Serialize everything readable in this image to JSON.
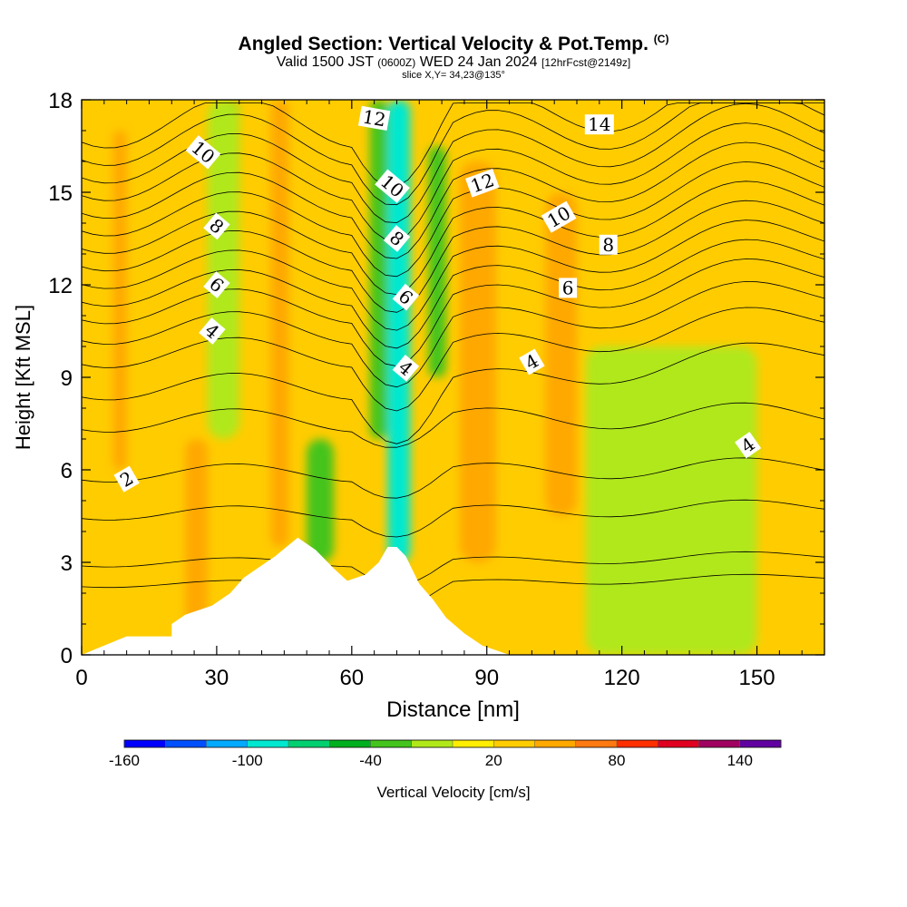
{
  "header": {
    "title": "Angled Section: Vertical Velocity & Pot.Temp.",
    "title_unit": "(C)",
    "subtitle_main": "Valid 1500 JST",
    "subtitle_utc": "(0600Z)",
    "subtitle_date": "WED 24 Jan 2024",
    "subtitle_fcst": "[12hrFcst@2149z]",
    "slice": "slice X,Y= 34,23@135°"
  },
  "chart_data": {
    "type": "heatmap",
    "title": "Angled Section: Vertical Velocity & Pot.Temp. (C)",
    "xlabel": "Distance [nm]",
    "ylabel": "Height [Kft MSL]",
    "xlim": [
      0,
      165
    ],
    "ylim": [
      0,
      18
    ],
    "xticks": [
      "0",
      "30",
      "60",
      "90",
      "120",
      "150"
    ],
    "yticks": [
      "0",
      "3",
      "6",
      "9",
      "12",
      "15",
      "18"
    ],
    "grid": false,
    "colorbar": {
      "label": "Vertical Velocity [cm/s]",
      "min": -160,
      "max": 160,
      "step": 20,
      "ticks": [
        "-160",
        "-100",
        "-40",
        "20",
        "80",
        "140"
      ],
      "colors": [
        "#0000ff",
        "#0050ff",
        "#00aaff",
        "#00e8d0",
        "#00d070",
        "#00b020",
        "#44c41c",
        "#b0e81a",
        "#ffee00",
        "#ffcc00",
        "#ffa800",
        "#ff7a10",
        "#ff3000",
        "#e00020",
        "#a00060",
        "#6000a0"
      ]
    },
    "terrain": [
      [
        0,
        0
      ],
      [
        10,
        0.6
      ],
      [
        20,
        0.6
      ],
      [
        20,
        1
      ],
      [
        23,
        1.3
      ],
      [
        27,
        1.5
      ],
      [
        29,
        1.6
      ],
      [
        33,
        2
      ],
      [
        36,
        2.5
      ],
      [
        39,
        2.8
      ],
      [
        43,
        3.2
      ],
      [
        48,
        3.8
      ],
      [
        52,
        3.4
      ],
      [
        56,
        2.8
      ],
      [
        59,
        2.4
      ],
      [
        63,
        2.6
      ],
      [
        66,
        3
      ],
      [
        68,
        3.5
      ],
      [
        70,
        3.5
      ],
      [
        72,
        3.2
      ],
      [
        75,
        2.3
      ],
      [
        78,
        1.8
      ],
      [
        81,
        1.2
      ],
      [
        85,
        0.7
      ],
      [
        89,
        0.3
      ],
      [
        95,
        0
      ]
    ],
    "vertical_velocity_cells": [
      {
        "x": [
          0,
          165
        ],
        "z": [
          0,
          18
        ],
        "w": 20
      },
      {
        "x": [
          7,
          10
        ],
        "z": [
          6,
          17
        ],
        "w": 40
      },
      {
        "x": [
          23,
          28
        ],
        "z": [
          0.5,
          7
        ],
        "w": 40
      },
      {
        "x": [
          30,
          35
        ],
        "z": [
          14.5,
          18
        ],
        "w": -40
      },
      {
        "x": [
          28,
          35
        ],
        "z": [
          7,
          18
        ],
        "w": -20
      },
      {
        "x": [
          42,
          46
        ],
        "z": [
          3.5,
          18
        ],
        "w": 40
      },
      {
        "x": [
          50,
          56
        ],
        "z": [
          3,
          7
        ],
        "w": -40
      },
      {
        "x": [
          64,
          68
        ],
        "z": [
          7,
          18
        ],
        "w": -40
      },
      {
        "x": [
          68,
          73
        ],
        "z": [
          3,
          18
        ],
        "w": -100
      },
      {
        "x": [
          77,
          81
        ],
        "z": [
          9,
          16.5
        ],
        "w": -40
      },
      {
        "x": [
          84,
          92
        ],
        "z": [
          3,
          16
        ],
        "w": 40
      },
      {
        "x": [
          103,
          110
        ],
        "z": [
          4.5,
          15
        ],
        "w": 40
      },
      {
        "x": [
          112,
          150
        ],
        "z": [
          0,
          10
        ],
        "w": -20
      }
    ],
    "potential_temperature_labels": [
      "2",
      "4",
      "4",
      "4",
      "4",
      "6",
      "6",
      "6",
      "8",
      "8",
      "8",
      "10",
      "10",
      "10",
      "12",
      "12",
      "14"
    ]
  }
}
